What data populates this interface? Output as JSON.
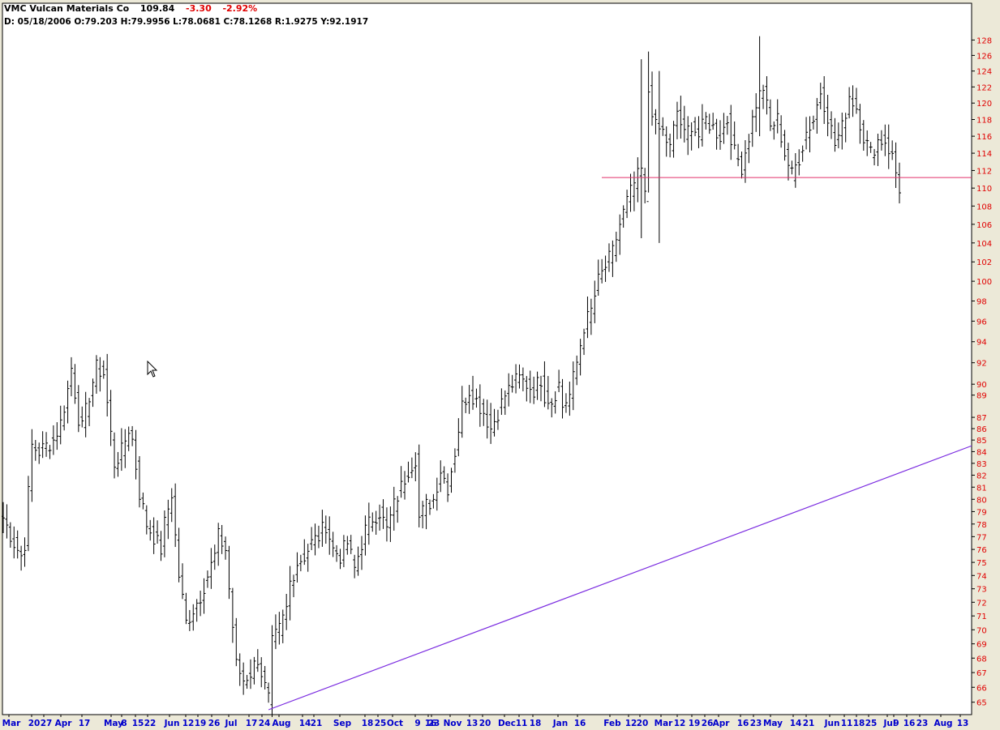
{
  "header": {
    "symbol": "VMC",
    "name": "Vulcan Materials Co",
    "last": "109.84",
    "change": "-3.30",
    "change_pct": "-2.92%",
    "info": {
      "date_label": "D:",
      "date": "05/18/2006",
      "open_label": "O:",
      "open": "79.203",
      "high_label": "H:",
      "high": "79.9956",
      "low_label": "L:",
      "low": "78.0681",
      "close_label": "C:",
      "close": "78.1268",
      "r_label": "R:",
      "r": "1.9275",
      "y_label": "Y:",
      "y": "92.1917"
    }
  },
  "colors": {
    "background": "#ECE9D8",
    "plot_bg": "#FFFFFF",
    "bars": "#000000",
    "price_axis": "#E00000",
    "date_axis": "#0000CC",
    "support_line": "#E0306A",
    "trend_line": "#7A2BE0"
  },
  "chart_data": {
    "type": "ohlc",
    "scale": "log",
    "ylim": [
      64.5,
      129
    ],
    "y_ticks": [
      65,
      66,
      67,
      68,
      69,
      70,
      71,
      72,
      73,
      74,
      75,
      76,
      77,
      78,
      79,
      80,
      81,
      82,
      83,
      84,
      85,
      86,
      87,
      89,
      90,
      92,
      94,
      96,
      98,
      100,
      102,
      104,
      106,
      108,
      110,
      112,
      114,
      116,
      118,
      120,
      122,
      124,
      126,
      128
    ],
    "x_ticks": [
      {
        "label": "Mar",
        "month": true
      },
      {
        "label": "20",
        "month": false
      },
      {
        "label": "27",
        "month": false
      },
      {
        "label": "Apr",
        "month": true
      },
      {
        "label": "17",
        "month": false
      },
      {
        "label": "May",
        "month": true
      },
      {
        "label": "8",
        "month": false
      },
      {
        "label": "15",
        "month": false
      },
      {
        "label": "22",
        "month": false
      },
      {
        "label": "Jun",
        "month": true
      },
      {
        "label": "12",
        "month": false
      },
      {
        "label": "19",
        "month": false
      },
      {
        "label": "26",
        "month": false
      },
      {
        "label": "Jul",
        "month": true
      },
      {
        "label": "17",
        "month": false
      },
      {
        "label": "24",
        "month": false
      },
      {
        "label": "Aug",
        "month": true
      },
      {
        "label": "14",
        "month": false
      },
      {
        "label": "21",
        "month": false
      },
      {
        "label": "Sep",
        "month": true
      },
      {
        "label": "18",
        "month": false
      },
      {
        "label": "25",
        "month": false
      },
      {
        "label": "Oct",
        "month": true
      },
      {
        "label": "9",
        "month": false
      },
      {
        "label": "16",
        "month": false
      },
      {
        "label": "23",
        "month": false
      },
      {
        "label": "Nov",
        "month": true
      },
      {
        "label": "13",
        "month": false
      },
      {
        "label": "20",
        "month": false
      },
      {
        "label": "Dec",
        "month": true
      },
      {
        "label": "11",
        "month": false
      },
      {
        "label": "18",
        "month": false
      },
      {
        "label": "Jan",
        "month": true
      },
      {
        "label": "16",
        "month": false
      },
      {
        "label": "Feb",
        "month": true
      },
      {
        "label": "12",
        "month": false
      },
      {
        "label": "20",
        "month": false
      },
      {
        "label": "Mar",
        "month": true
      },
      {
        "label": "12",
        "month": false
      },
      {
        "label": "19",
        "month": false
      },
      {
        "label": "26",
        "month": false
      },
      {
        "label": "Apr",
        "month": true
      },
      {
        "label": "16",
        "month": false
      },
      {
        "label": "23",
        "month": false
      },
      {
        "label": "May",
        "month": true
      },
      {
        "label": "14",
        "month": false
      },
      {
        "label": "21",
        "month": false
      },
      {
        "label": "Jun",
        "month": true
      },
      {
        "label": "11",
        "month": false
      },
      {
        "label": "18",
        "month": false
      },
      {
        "label": "25",
        "month": false
      },
      {
        "label": "Jul",
        "month": true
      },
      {
        "label": "9",
        "month": false
      },
      {
        "label": "16",
        "month": false
      },
      {
        "label": "23",
        "month": false
      },
      {
        "label": "Aug",
        "month": true
      },
      {
        "label": "13",
        "month": false
      }
    ],
    "close_path": [
      [
        0,
        78.5
      ],
      [
        3,
        76.5
      ],
      [
        5,
        75.5
      ],
      [
        6,
        76.5
      ],
      [
        8,
        84.5
      ],
      [
        10,
        84.0
      ],
      [
        12,
        84.5
      ],
      [
        14,
        85.0
      ],
      [
        16,
        86.5
      ],
      [
        18,
        89.5
      ],
      [
        19,
        91.5
      ],
      [
        21,
        87.0
      ],
      [
        22,
        86.0
      ],
      [
        24,
        89.0
      ],
      [
        26,
        91.5
      ],
      [
        28,
        91.0
      ],
      [
        30,
        85.5
      ],
      [
        31,
        83.0
      ],
      [
        33,
        84.0
      ],
      [
        35,
        86.0
      ],
      [
        36,
        85.0
      ],
      [
        38,
        80.5
      ],
      [
        40,
        78.0
      ],
      [
        42,
        77.0
      ],
      [
        44,
        76.0
      ],
      [
        45,
        78.0
      ],
      [
        47,
        80.5
      ],
      [
        48,
        77.0
      ],
      [
        49,
        74.0
      ],
      [
        51,
        70.5
      ],
      [
        53,
        71.5
      ],
      [
        55,
        72.5
      ],
      [
        57,
        74.0
      ],
      [
        59,
        75.5
      ],
      [
        60,
        77.0
      ],
      [
        62,
        76.0
      ],
      [
        63,
        73.0
      ],
      [
        65,
        67.5
      ],
      [
        67,
        66.5
      ],
      [
        69,
        67.0
      ],
      [
        71,
        68.0
      ],
      [
        73,
        66.0
      ],
      [
        74,
        65.2
      ],
      [
        75,
        69.0
      ],
      [
        77,
        70.0
      ],
      [
        79,
        71.5
      ],
      [
        80,
        73.5
      ],
      [
        82,
        75.0
      ],
      [
        84,
        75.5
      ],
      [
        86,
        76.5
      ],
      [
        88,
        77.0
      ],
      [
        90,
        78.0
      ],
      [
        92,
        76.0
      ],
      [
        94,
        75.5
      ],
      [
        96,
        76.5
      ],
      [
        98,
        74.5
      ],
      [
        99,
        75.5
      ],
      [
        101,
        77.5
      ],
      [
        103,
        78.5
      ],
      [
        105,
        79.0
      ],
      [
        107,
        77.5
      ],
      [
        109,
        79.5
      ],
      [
        111,
        81.0
      ],
      [
        113,
        82.5
      ],
      [
        115,
        83.5
      ],
      [
        116,
        78.5
      ],
      [
        118,
        79.5
      ],
      [
        120,
        80.0
      ],
      [
        122,
        82.5
      ],
      [
        124,
        81.0
      ],
      [
        126,
        84.0
      ],
      [
        128,
        88.0
      ],
      [
        130,
        89.5
      ],
      [
        132,
        88.5
      ],
      [
        134,
        87.5
      ],
      [
        136,
        86.0
      ],
      [
        138,
        87.5
      ],
      [
        140,
        89.0
      ],
      [
        142,
        90.0
      ],
      [
        144,
        90.5
      ],
      [
        146,
        90.0
      ],
      [
        148,
        89.5
      ],
      [
        150,
        90.5
      ],
      [
        151,
        89.0
      ],
      [
        153,
        88.5
      ],
      [
        155,
        90.0
      ],
      [
        156,
        88.0
      ],
      [
        158,
        89.0
      ],
      [
        160,
        92.0
      ],
      [
        162,
        95.5
      ],
      [
        164,
        97.0
      ],
      [
        166,
        100.0
      ],
      [
        168,
        101.5
      ],
      [
        170,
        103.0
      ],
      [
        172,
        106.0
      ],
      [
        174,
        108.5
      ],
      [
        176,
        110.5
      ],
      [
        178,
        112.0
      ],
      [
        179,
        109.0
      ],
      [
        180,
        121.5
      ],
      [
        182,
        117.0
      ],
      [
        184,
        116.5
      ],
      [
        186,
        114.5
      ],
      [
        188,
        119.0
      ],
      [
        190,
        116.0
      ],
      [
        192,
        117.5
      ],
      [
        194,
        116.0
      ],
      [
        196,
        118.0
      ],
      [
        198,
        117.0
      ],
      [
        200,
        116.0
      ],
      [
        202,
        118.0
      ],
      [
        204,
        114.0
      ],
      [
        206,
        112.5
      ],
      [
        208,
        116.0
      ],
      [
        210,
        120.0
      ],
      [
        212,
        122.0
      ],
      [
        214,
        117.0
      ],
      [
        216,
        118.0
      ],
      [
        218,
        114.0
      ],
      [
        220,
        111.5
      ],
      [
        222,
        113.5
      ],
      [
        224,
        116.5
      ],
      [
        226,
        118.0
      ],
      [
        228,
        121.5
      ],
      [
        230,
        118.5
      ],
      [
        232,
        115.0
      ],
      [
        234,
        117.0
      ],
      [
        236,
        121.0
      ],
      [
        238,
        119.5
      ],
      [
        240,
        116.0
      ],
      [
        242,
        114.0
      ],
      [
        244,
        115.5
      ],
      [
        246,
        115.5
      ],
      [
        248,
        113.5
      ],
      [
        250,
        110.0
      ]
    ],
    "spikes": [
      {
        "i": 178,
        "high": 125.5,
        "low": 104.5
      },
      {
        "i": 180,
        "high": 126.5,
        "low": 109.5
      },
      {
        "i": 183,
        "high": 124.0,
        "low": 104.0
      },
      {
        "i": 211,
        "high": 128.5,
        "low": 116.0
      }
    ],
    "support_line": {
      "price": 111.2
    },
    "trend_line": {
      "start_i": 74,
      "start_price": 64.5,
      "end_price": 84.5
    }
  }
}
